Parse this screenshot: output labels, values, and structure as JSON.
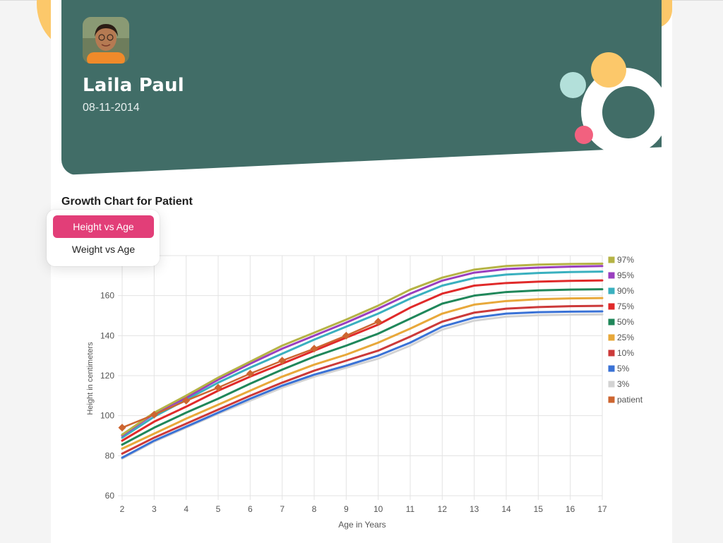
{
  "patient": {
    "name": "Laila Paul",
    "dob": "08-11-2014"
  },
  "section_title": "Growth Chart for Patient",
  "menu": {
    "options": [
      "Height vs Age",
      "Weight vs Age"
    ],
    "selected": "Height vs Age"
  },
  "colors": {
    "header": "#416d67",
    "accent": "#e23e78",
    "yellow": "#fcc86a",
    "mint": "#b3e0da",
    "pink": "#f2617f"
  },
  "chart_data": {
    "type": "line",
    "xlabel": "Age in Years",
    "ylabel": "Height in centimeters",
    "xlim": [
      2,
      17
    ],
    "ylim": [
      60,
      180
    ],
    "yticks": [
      60,
      80,
      100,
      120,
      140,
      160
    ],
    "x": [
      2,
      3,
      4,
      5,
      6,
      7,
      8,
      9,
      10,
      11,
      12,
      13,
      14,
      15,
      16,
      17
    ],
    "grid": true,
    "legend": "right",
    "series": [
      {
        "name": "97%",
        "color": "#b5b345",
        "values": [
          90.5,
          101.5,
          110,
          119,
          127,
          135,
          141.5,
          148,
          155,
          163,
          169,
          173,
          174.8,
          175.5,
          175.8,
          176
        ]
      },
      {
        "name": "95%",
        "color": "#9a3fbf",
        "values": [
          90,
          101,
          109,
          118,
          126,
          133.5,
          140,
          146.5,
          153.5,
          161,
          167.5,
          171.5,
          173.3,
          174,
          174.5,
          174.8
        ]
      },
      {
        "name": "90%",
        "color": "#3ab0bf",
        "values": [
          89,
          99.5,
          108,
          116.5,
          124,
          131,
          138,
          144.5,
          151,
          158.5,
          165,
          168.8,
          170.5,
          171.3,
          171.8,
          172
        ]
      },
      {
        "name": "75%",
        "color": "#e02a2a",
        "values": [
          87.5,
          97,
          104.5,
          112.5,
          119.5,
          126,
          132.5,
          139,
          145.5,
          154,
          161,
          165,
          166.3,
          167,
          167.4,
          167.6
        ]
      },
      {
        "name": "50%",
        "color": "#20875a",
        "values": [
          85.5,
          94,
          101.5,
          108.5,
          116,
          123,
          129.5,
          135,
          141,
          148.5,
          156,
          160,
          161.8,
          162.6,
          163,
          163.2
        ]
      },
      {
        "name": "25%",
        "color": "#e8a83a",
        "values": [
          83.5,
          91,
          98.5,
          105.5,
          112.5,
          119.5,
          125.5,
          130.5,
          136.5,
          143.5,
          151,
          155.5,
          157.3,
          158.2,
          158.6,
          158.8
        ]
      },
      {
        "name": "10%",
        "color": "#cc3a3a",
        "values": [
          81,
          89,
          96,
          103,
          110,
          116.5,
          122.5,
          127.5,
          132.5,
          139.5,
          147,
          151.5,
          153.5,
          154.3,
          154.7,
          154.9
        ]
      },
      {
        "name": "5%",
        "color": "#3a72d6",
        "values": [
          79,
          87.5,
          94.5,
          101.5,
          108.5,
          115,
          120.5,
          125,
          130,
          136.5,
          144.5,
          149,
          151,
          151.7,
          152,
          152.1
        ]
      },
      {
        "name": "3%",
        "color": "#d3d3d3",
        "values": [
          78.5,
          87,
          94,
          101,
          107.5,
          114,
          119.5,
          124,
          128.5,
          135,
          143,
          147.5,
          149.5,
          150.2,
          150.5,
          150.6
        ]
      },
      {
        "name": "patient",
        "color": "#cd6530",
        "marker": "diamond",
        "x": [
          2,
          3,
          4,
          5,
          6,
          7,
          8,
          9,
          10
        ],
        "values": [
          94,
          100.5,
          107.5,
          114,
          121,
          127.5,
          133.5,
          140,
          147
        ]
      }
    ]
  }
}
